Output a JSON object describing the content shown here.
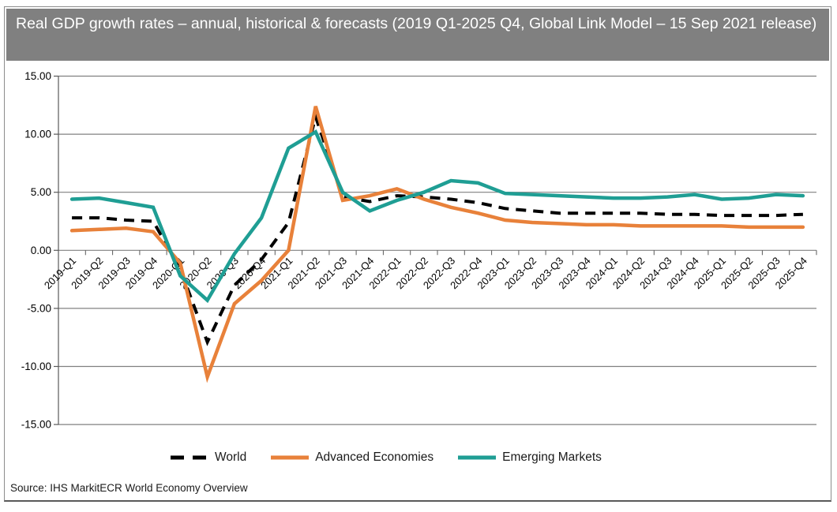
{
  "header": {
    "title": "Real GDP growth rates – annual, historical & forecasts (2019 Q1-2025 Q4, Global Link Model – 15 Sep 2021 release)"
  },
  "source": {
    "text": "Source: IHS MarkitECR World Economy Overview"
  },
  "colors": {
    "titlebar_bg": "#808080",
    "titlebar_text": "#ffffff",
    "gridline": "#808080",
    "axis": "#595959",
    "world": "#000000",
    "advanced_economies": "#E8813A",
    "emerging_markets": "#1F9E94"
  },
  "chart_data": {
    "type": "line",
    "title": "Real GDP growth rates – annual, historical & forecasts (2019 Q1-2025 Q4, Global Link Model – 15 Sep 2021 release)",
    "xlabel": "",
    "ylabel": "",
    "ylim": [
      -15,
      15
    ],
    "yticks": [
      15,
      10,
      5,
      0,
      -5,
      -10,
      -15
    ],
    "ytick_labels": [
      "15.00",
      "10.00",
      "5.00",
      "0.00",
      "-5.00",
      "-10.00",
      "-15.00"
    ],
    "grid": true,
    "legend_position": "bottom",
    "categories": [
      "2019-Q1",
      "2019-Q2",
      "2019-Q3",
      "2019-Q4",
      "2020-Q1",
      "2020-Q2",
      "2020-Q3",
      "2020-Q4",
      "2021-Q1",
      "2021-Q2",
      "2021-Q3",
      "2021-Q4",
      "2022-Q1",
      "2022-Q2",
      "2022-Q3",
      "2022-Q4",
      "2023-Q1",
      "2023-Q2",
      "2023-Q3",
      "2023-Q4",
      "2024-Q1",
      "2024-Q2",
      "2024-Q3",
      "2024-Q4",
      "2025-Q1",
      "2025-Q2",
      "2025-Q3",
      "2025-Q4"
    ],
    "series": [
      {
        "name": "World",
        "color": "#000000",
        "style": "dashed",
        "values": [
          2.8,
          2.8,
          2.6,
          2.5,
          -1.6,
          -7.9,
          -3.0,
          -0.8,
          2.4,
          11.5,
          4.6,
          4.2,
          4.7,
          4.6,
          4.4,
          4.1,
          3.6,
          3.4,
          3.2,
          3.2,
          3.2,
          3.2,
          3.1,
          3.1,
          3.0,
          3.0,
          3.0,
          3.1
        ]
      },
      {
        "name": "Advanced Economies",
        "color": "#E8813A",
        "style": "solid",
        "values": [
          1.7,
          1.8,
          1.9,
          1.6,
          -1.1,
          -10.9,
          -4.6,
          -2.6,
          0.0,
          12.4,
          4.3,
          4.7,
          5.3,
          4.4,
          3.7,
          3.2,
          2.6,
          2.4,
          2.3,
          2.2,
          2.2,
          2.1,
          2.1,
          2.1,
          2.1,
          2.0,
          2.0,
          2.0
        ]
      },
      {
        "name": "Emerging Markets",
        "color": "#1F9E94",
        "style": "solid",
        "values": [
          4.4,
          4.5,
          4.1,
          3.7,
          -2.2,
          -4.3,
          -0.3,
          2.8,
          8.8,
          10.2,
          5.0,
          3.4,
          4.3,
          5.0,
          6.0,
          5.8,
          4.9,
          4.8,
          4.7,
          4.6,
          4.5,
          4.5,
          4.6,
          4.8,
          4.4,
          4.5,
          4.8,
          4.7
        ]
      }
    ]
  }
}
